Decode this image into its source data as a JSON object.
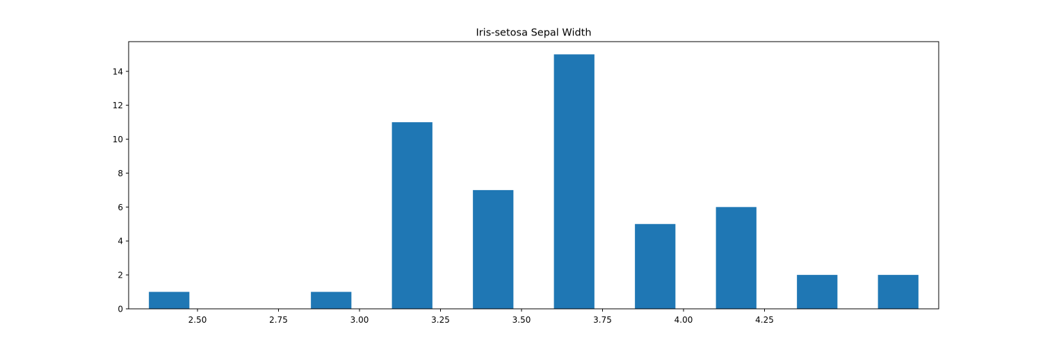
{
  "chart_data": {
    "type": "bar",
    "title": "Iris-setosa Sepal Width",
    "xlabel": "",
    "ylabel": "",
    "bars": [
      {
        "x_start": 2.35,
        "x_end": 2.475,
        "value": 1
      },
      {
        "x_start": 2.85,
        "x_end": 2.975,
        "value": 1
      },
      {
        "x_start": 3.1,
        "x_end": 3.225,
        "value": 11
      },
      {
        "x_start": 3.35,
        "x_end": 3.475,
        "value": 7
      },
      {
        "x_start": 3.6,
        "x_end": 3.725,
        "value": 15
      },
      {
        "x_start": 3.85,
        "x_end": 3.975,
        "value": 5
      },
      {
        "x_start": 4.1,
        "x_end": 4.225,
        "value": 6
      },
      {
        "x_start": 4.35,
        "x_end": 4.475,
        "value": 2
      },
      {
        "x_start": 4.6,
        "x_end": 4.725,
        "value": 2
      }
    ],
    "x_ticks": [
      "2.50",
      "2.75",
      "3.00",
      "3.25",
      "3.50",
      "3.75",
      "4.00",
      "4.25"
    ],
    "y_ticks": [
      "0",
      "2",
      "4",
      "6",
      "8",
      "10",
      "12",
      "14"
    ],
    "xlim": [
      2.2875,
      4.7875
    ],
    "ylim": [
      0,
      15.75
    ],
    "grid": false,
    "bar_color": "#1f77b4"
  }
}
